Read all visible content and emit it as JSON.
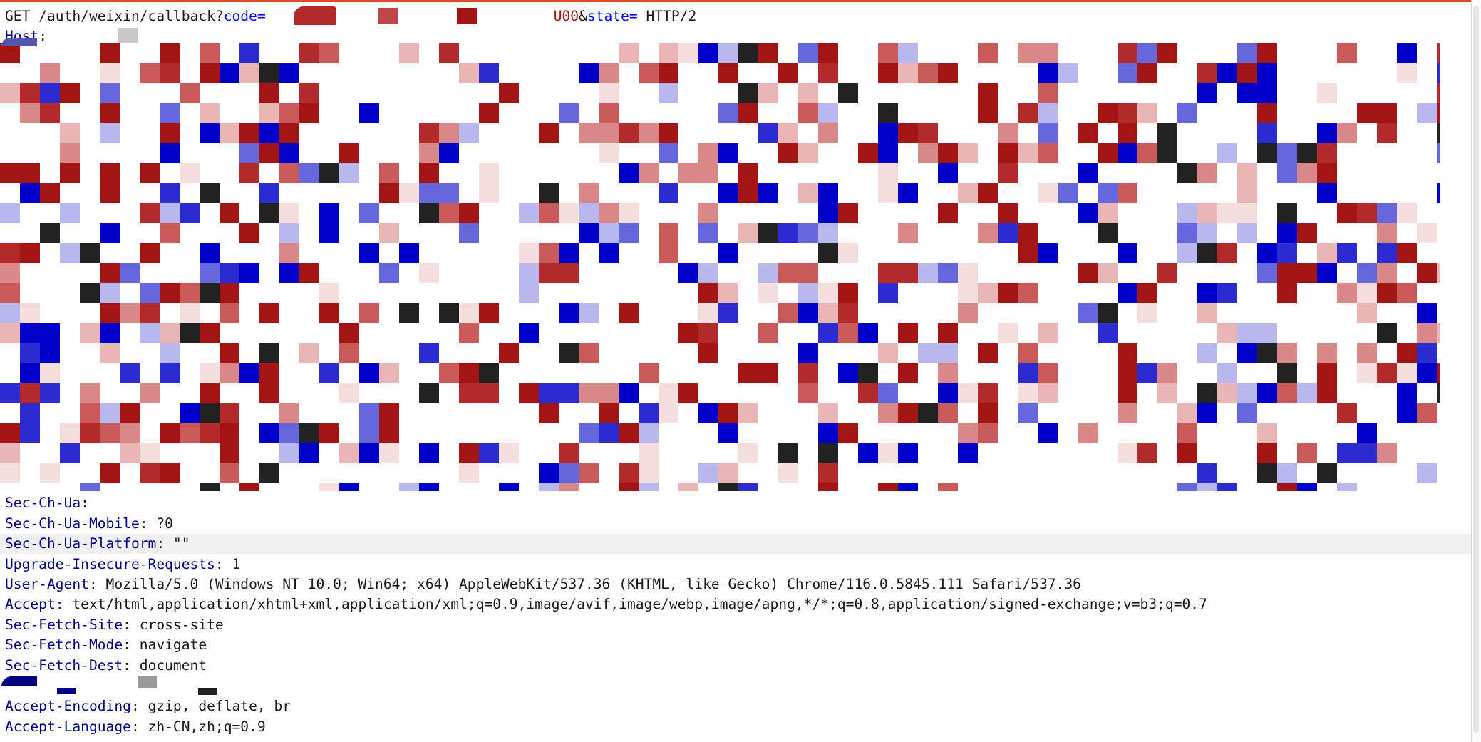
{
  "request_line": {
    "method_path": "GET /auth/weixin/callback?",
    "param_code": "code",
    "eq1": "=",
    "code_tail": "U00",
    "amp": "&",
    "param_state": "state",
    "eq2": "=",
    "protocol": " HTTP/2"
  },
  "headers": {
    "host": {
      "name": "Host",
      "sep": ":",
      "value": ""
    },
    "sec_ch_ua": {
      "name": "Sec-Ch-Ua",
      "sep": ":",
      "value": ""
    },
    "sec_ch_ua_mobile": {
      "name": "Sec-Ch-Ua-Mobile",
      "sep": ":",
      "value": " ?0"
    },
    "sec_ch_ua_platform": {
      "name": "Sec-Ch-Ua-Platform",
      "sep": ":",
      "value": " \"\""
    },
    "upgrade_insecure_requests": {
      "name": "Upgrade-Insecure-Requests",
      "sep": ":",
      "value": " 1"
    },
    "user_agent": {
      "name": "User-Agent",
      "sep": ":",
      "value": " Mozilla/5.0 (Windows NT 10.0; Win64; x64) AppleWebKit/537.36 (KHTML, like Gecko) Chrome/116.0.5845.111 Safari/537.36"
    },
    "accept": {
      "name": "Accept",
      "sep": ":",
      "value": " text/html,application/xhtml+xml,application/xml;q=0.9,image/avif,image/webp,image/apng,*/*;q=0.8,application/signed-exchange;v=b3;q=0.7"
    },
    "sec_fetch_site": {
      "name": "Sec-Fetch-Site",
      "sep": ":",
      "value": " cross-site"
    },
    "sec_fetch_mode": {
      "name": "Sec-Fetch-Mode",
      "sep": ":",
      "value": " navigate"
    },
    "sec_fetch_dest": {
      "name": "Sec-Fetch-Dest",
      "sep": ":",
      "value": " document"
    },
    "accept_encoding": {
      "name": "Accept-Encoding",
      "sep": ":",
      "value": " gzip, deflate, br"
    },
    "accept_language": {
      "name": "Accept-Language",
      "sep": ":",
      "value": " zh-CN,zh;q=0.9"
    }
  },
  "colors": {
    "header_name": "#000080",
    "query_param": "#0000ff",
    "text": "#1a1a1a",
    "line_highlight": "#f0f0f0",
    "mask_red": "#a31515",
    "mask_blue": "#0000c8",
    "mask_pink": "#d98888",
    "mask_black": "#222222",
    "mask_grey": "#999999"
  }
}
